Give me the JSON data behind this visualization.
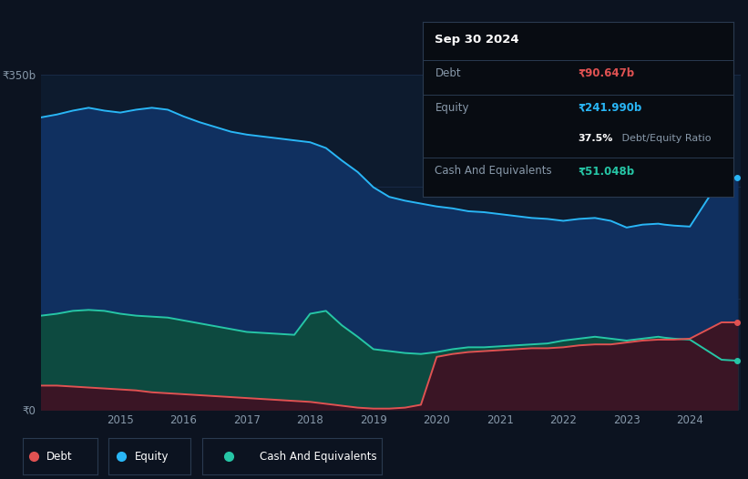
{
  "background_color": "#0c1320",
  "plot_bg_color": "#0d1b2e",
  "title_box": {
    "date": "Sep 30 2024",
    "debt_label": "Debt",
    "debt_value": "₹90.647b",
    "equity_label": "Equity",
    "equity_value": "₹241.990b",
    "cash_label": "Cash And Equivalents",
    "cash_value": "₹51.048b",
    "debt_color": "#e05252",
    "equity_color": "#29b6f6",
    "cash_color": "#26c6a6",
    "ratio_bold": "37.5%",
    "ratio_rest": " Debt/Equity Ratio"
  },
  "years": [
    2013.75,
    2014.0,
    2014.25,
    2014.5,
    2014.75,
    2015.0,
    2015.25,
    2015.5,
    2015.75,
    2016.0,
    2016.25,
    2016.5,
    2016.75,
    2017.0,
    2017.25,
    2017.5,
    2017.75,
    2018.0,
    2018.25,
    2018.5,
    2018.75,
    2019.0,
    2019.25,
    2019.5,
    2019.75,
    2020.0,
    2020.25,
    2020.5,
    2020.75,
    2021.0,
    2021.25,
    2021.5,
    2021.75,
    2022.0,
    2022.25,
    2022.5,
    2022.75,
    2023.0,
    2023.25,
    2023.5,
    2023.6,
    2023.75,
    2024.0,
    2024.5,
    2024.75
  ],
  "equity": [
    305,
    308,
    312,
    315,
    312,
    310,
    313,
    315,
    313,
    306,
    300,
    295,
    290,
    287,
    285,
    283,
    281,
    279,
    273,
    260,
    248,
    232,
    222,
    218,
    215,
    212,
    210,
    207,
    206,
    204,
    202,
    200,
    199,
    197,
    199,
    200,
    197,
    190,
    193,
    194,
    193,
    192,
    191,
    242,
    242
  ],
  "cash": [
    98,
    100,
    103,
    104,
    103,
    100,
    98,
    97,
    96,
    93,
    90,
    87,
    84,
    81,
    80,
    79,
    78,
    100,
    103,
    88,
    76,
    63,
    61,
    59,
    58,
    60,
    63,
    65,
    65,
    66,
    67,
    68,
    69,
    72,
    74,
    76,
    74,
    72,
    74,
    76,
    75,
    74,
    73,
    52,
    51
  ],
  "debt": [
    25,
    25,
    24,
    23,
    22,
    21,
    20,
    18,
    17,
    16,
    15,
    14,
    13,
    12,
    11,
    10,
    9,
    8,
    6,
    4,
    2,
    1,
    1,
    2,
    5,
    55,
    58,
    60,
    61,
    62,
    63,
    64,
    64,
    65,
    67,
    68,
    68,
    70,
    72,
    73,
    73,
    73,
    74,
    91,
    91
  ],
  "ylim": [
    0,
    350
  ],
  "yticks_pos": [
    0,
    350
  ],
  "ytick_labels": [
    "₹0",
    "₹350b"
  ],
  "xticks": [
    2015,
    2016,
    2017,
    2018,
    2019,
    2020,
    2021,
    2022,
    2023,
    2024
  ],
  "equity_line_color": "#29b6f6",
  "equity_fill_color": "#103060",
  "cash_line_color": "#26c6a6",
  "cash_fill_color": "#0d4a40",
  "debt_line_color": "#e05252",
  "debt_fill_color": "#3a1525",
  "grid_color": "#1e3050",
  "text_color": "#8899aa",
  "box_bg": "#080c12",
  "box_border": "#2a3a50"
}
